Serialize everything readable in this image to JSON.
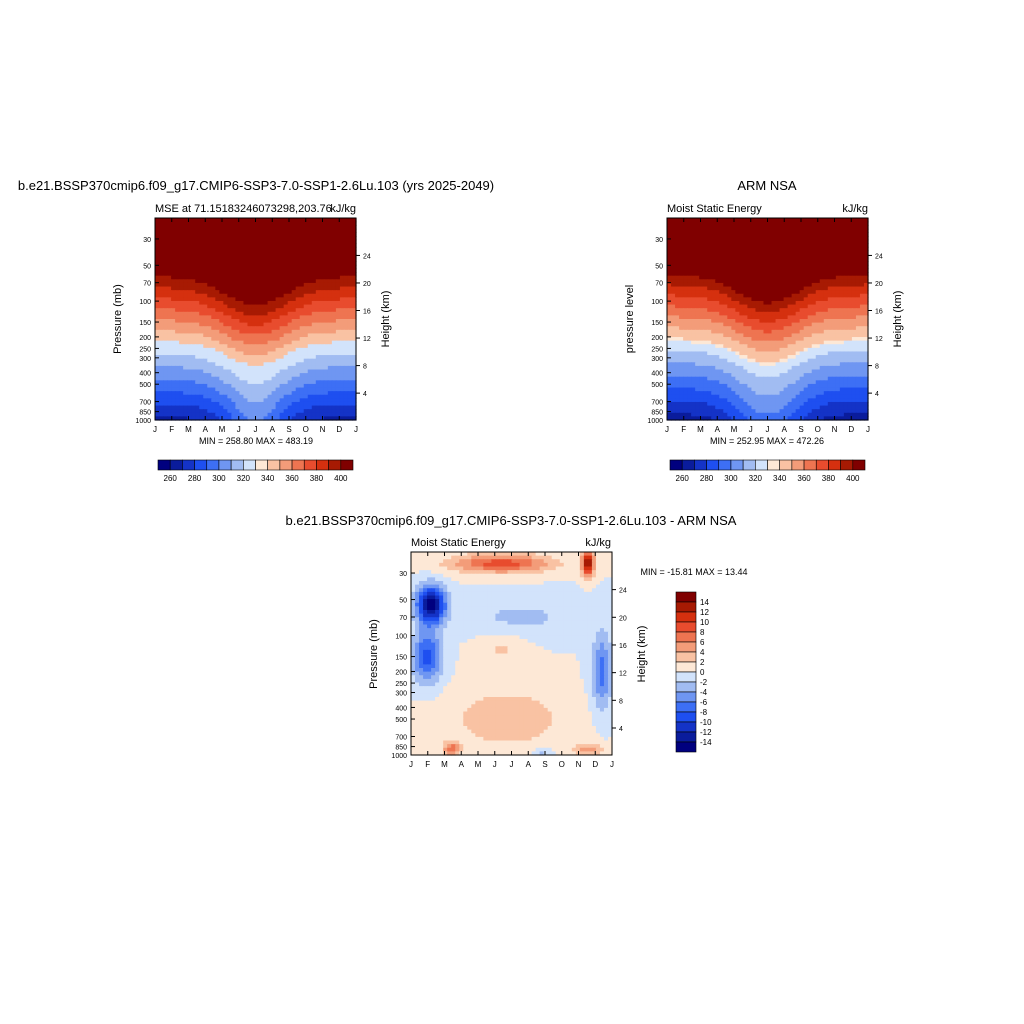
{
  "months": [
    "J",
    "F",
    "M",
    "A",
    "M",
    "J",
    "J",
    "A",
    "S",
    "O",
    "N",
    "D",
    "J"
  ],
  "pressure_ticks": [
    30,
    50,
    70,
    100,
    150,
    200,
    250,
    300,
    400,
    500,
    700,
    850,
    1000
  ],
  "colors": {
    "mse_palette": [
      "#00007f",
      "#0a1c9c",
      "#1433c7",
      "#1e4ff0",
      "#3d6ff5",
      "#6f96f2",
      "#a1bcf2",
      "#d2e3fb",
      "#fde8d6",
      "#f9c2a3",
      "#f39c79",
      "#ee7451",
      "#e84c2e",
      "#d5300f",
      "#a71a03",
      "#800000"
    ],
    "diff_palette": [
      "#00007f",
      "#0a1c9c",
      "#1433c7",
      "#1e4ff0",
      "#3d6ff5",
      "#6f96f2",
      "#a1bcf2",
      "#d2e3fb",
      "#fde8d6",
      "#f9c2a3",
      "#f39c79",
      "#ee7451",
      "#e84c2e",
      "#d5300f",
      "#a71a03",
      "#800000"
    ]
  },
  "panels": {
    "model": {
      "title": "b.e21.BSSP370cmip6.f09_g17.CMIP6-SSP3-7.0-SSP1-2.6Lu.103 (yrs 2025-2049)",
      "left_label": "MSE at 71.15183246073298,203.76",
      "right_label": "kJ/kg",
      "ylabel": "Pressure (mb)",
      "y2label": "Height (km)",
      "minmax": "MIN = 258.80   MAX = 483.19"
    },
    "obs": {
      "title": "ARM NSA",
      "left_label": "Moist Static Energy",
      "right_label": "kJ/kg",
      "ylabel": "pressure level",
      "y2label": "Height (km)",
      "minmax": "MIN = 252.95   MAX = 472.26"
    },
    "diff": {
      "title": "b.e21.BSSP370cmip6.f09_g17.CMIP6-SSP3-7.0-SSP1-2.6Lu.103 - ARM NSA",
      "left_label": "Moist Static Energy",
      "right_label": "kJ/kg",
      "ylabel": "Pressure (mb)",
      "y2label": "Height (km)",
      "minmax": "MIN = -15.81   MAX =  13.44"
    }
  },
  "chart_data": [
    {
      "type": "heatmap",
      "title": "b.e21.BSSP370cmip6.f09_g17.CMIP6-SSP3-7.0-SSP1-2.6Lu.103 (yrs 2025-2049)",
      "subtitle_left": "MSE at 71.15183246073298,203.76",
      "units": "kJ/kg",
      "x": [
        "J",
        "F",
        "M",
        "A",
        "M",
        "J",
        "J",
        "A",
        "S",
        "O",
        "N",
        "D",
        "J"
      ],
      "ylabel": "Pressure (mb)",
      "y2label": "Height (km)",
      "y_ticks": [
        30,
        50,
        70,
        100,
        150,
        200,
        250,
        300,
        400,
        500,
        700,
        850,
        1000
      ],
      "y_range": [
        20,
        1000
      ],
      "y_scale": "log",
      "y2_ticks": [
        4,
        8,
        12,
        16,
        20,
        24
      ],
      "levels": [
        260,
        270,
        280,
        290,
        300,
        310,
        320,
        330,
        340,
        350,
        360,
        370,
        380,
        390,
        400
      ],
      "colorbar_labels": [
        260,
        280,
        300,
        320,
        340,
        360,
        380,
        400
      ],
      "min": 258.8,
      "max": 483.19
    },
    {
      "type": "heatmap",
      "title": "ARM NSA",
      "subtitle_left": "Moist Static Energy",
      "units": "kJ/kg",
      "x": [
        "J",
        "F",
        "M",
        "A",
        "M",
        "J",
        "J",
        "A",
        "S",
        "O",
        "N",
        "D",
        "J"
      ],
      "ylabel": "pressure level",
      "y2label": "Height (km)",
      "y_ticks": [
        30,
        50,
        70,
        100,
        150,
        200,
        250,
        300,
        400,
        500,
        700,
        850,
        1000
      ],
      "y_range": [
        20,
        1000
      ],
      "y_scale": "log",
      "y2_ticks": [
        4,
        8,
        12,
        16,
        20,
        24
      ],
      "levels": [
        260,
        270,
        280,
        290,
        300,
        310,
        320,
        330,
        340,
        350,
        360,
        370,
        380,
        390,
        400
      ],
      "colorbar_labels": [
        260,
        280,
        300,
        320,
        340,
        360,
        380,
        400
      ],
      "min": 252.95,
      "max": 472.26
    },
    {
      "type": "heatmap",
      "title": "b.e21.BSSP370cmip6.f09_g17.CMIP6-SSP3-7.0-SSP1-2.6Lu.103 - ARM NSA",
      "subtitle_left": "Moist Static Energy",
      "units": "kJ/kg",
      "x": [
        "J",
        "F",
        "M",
        "A",
        "M",
        "J",
        "J",
        "A",
        "S",
        "O",
        "N",
        "D",
        "J"
      ],
      "ylabel": "Pressure (mb)",
      "y2label": "Height (km)",
      "y_ticks": [
        30,
        50,
        70,
        100,
        150,
        200,
        250,
        300,
        400,
        500,
        700,
        850,
        1000
      ],
      "y_range": [
        20,
        1000
      ],
      "y_scale": "log",
      "y2_ticks": [
        4,
        8,
        12,
        16,
        20,
        24
      ],
      "levels": [
        -14,
        -12,
        -10,
        -8,
        -6,
        -4,
        -2,
        0,
        2,
        4,
        6,
        8,
        10,
        12,
        14
      ],
      "colorbar_labels": [
        14,
        12,
        10,
        8,
        6,
        4,
        2,
        0,
        -2,
        -4,
        -6,
        -8,
        -10,
        -12,
        -14
      ],
      "min": -15.81,
      "max": 13.44
    }
  ]
}
